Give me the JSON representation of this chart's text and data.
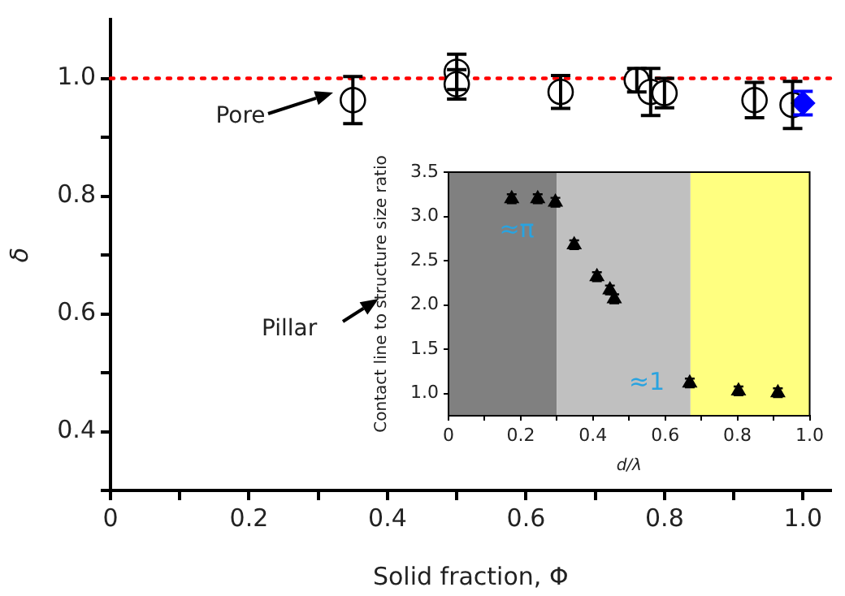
{
  "chart_data": [
    {
      "type": "scatter",
      "xlabel": "Solid fraction, Φ",
      "ylabel": "δ",
      "xlim": [
        0,
        1.04
      ],
      "ylim": [
        0.3,
        1.1
      ],
      "xticks": [
        0,
        {
          "value": 0.1,
          "label": null
        },
        0.2,
        {
          "value": 0.3,
          "label": null
        },
        0.4,
        {
          "value": 0.5,
          "label": null
        },
        0.6,
        {
          "value": 0.7,
          "label": null
        },
        0.8,
        {
          "value": 0.9,
          "label": null
        },
        {
          "value": 1,
          "label": "1.0"
        }
      ],
      "yticks": [
        {
          "value": 0.3,
          "label": null
        },
        0.4,
        {
          "value": 0.5,
          "label": null
        },
        0.6,
        {
          "value": 0.7,
          "label": null
        },
        0.8,
        {
          "value": 0.9,
          "label": null
        },
        {
          "value": 1,
          "label": "1.0"
        }
      ],
      "series": [
        {
          "color": "#000000",
          "marker": "circle",
          "x": [
            0.35,
            0.5,
            0.5,
            0.65,
            0.76,
            0.78,
            0.8,
            0.93,
            0.985
          ],
          "values": [
            0.963,
            1.011,
            0.99,
            0.977,
            0.997,
            0.977,
            0.975,
            0.963,
            0.955
          ],
          "errors": [
            0.04,
            0.03,
            0.025,
            0.028,
            0.02,
            0.04,
            0.025,
            0.03,
            0.04
          ]
        },
        {
          "color": "#0000ff",
          "marker": "diamond",
          "x": [
            1.0
          ],
          "values": [
            0.958
          ],
          "errors": [
            0.02
          ]
        }
      ],
      "ref_lines": [
        {
          "axis": "y",
          "value": 1.0,
          "color": "#ff0000",
          "line_style": "dotted"
        }
      ],
      "annotations": [
        "Pore",
        "Pillar"
      ],
      "grid": false,
      "legend": false
    },
    {
      "type": "scatter",
      "xlabel": "d/λ",
      "ylabel": "Contact line to structure size ratio",
      "xlim": [
        0,
        1
      ],
      "ylim": [
        0.75,
        3.5
      ],
      "xticks": [
        0,
        {
          "value": 0.1,
          "label": null
        },
        0.2,
        {
          "value": 0.3,
          "label": null
        },
        0.4,
        {
          "value": 0.5,
          "label": null
        },
        0.6,
        {
          "value": 0.7,
          "label": null
        },
        0.8,
        {
          "value": 0.9,
          "label": null
        },
        {
          "value": 1,
          "label": "1.0"
        }
      ],
      "yticks": [
        {
          "value": 1,
          "label": "1.0"
        },
        1.5,
        {
          "value": 2,
          "label": "2.0"
        },
        2.5,
        {
          "value": 3,
          "label": "3.0"
        },
        3.5
      ],
      "series": [
        {
          "color": "#000000",
          "marker": "triangle",
          "x": [
            0.175,
            0.247,
            0.296,
            0.348,
            0.411,
            0.447,
            0.459,
            0.668,
            0.803,
            0.912
          ],
          "values": [
            3.2,
            3.2,
            3.16,
            2.68,
            2.32,
            2.17,
            2.07,
            1.12,
            1.03,
            1.01
          ],
          "errors": [
            0.05,
            0.05,
            0.05,
            0.05,
            0.05,
            0.05,
            0.05,
            0.05,
            0.05,
            0.05
          ]
        }
      ],
      "bands": [
        {
          "axis": "x",
          "from": 0,
          "to": 0.3,
          "color": "#808080"
        },
        {
          "axis": "x",
          "from": 0.3,
          "to": 0.67,
          "color": "#c0c0c0"
        },
        {
          "axis": "x",
          "from": 0.67,
          "to": 1,
          "color": "#ffff80"
        }
      ],
      "annotations": [
        "≈π",
        "≈1"
      ],
      "grid": false,
      "legend": false
    }
  ]
}
